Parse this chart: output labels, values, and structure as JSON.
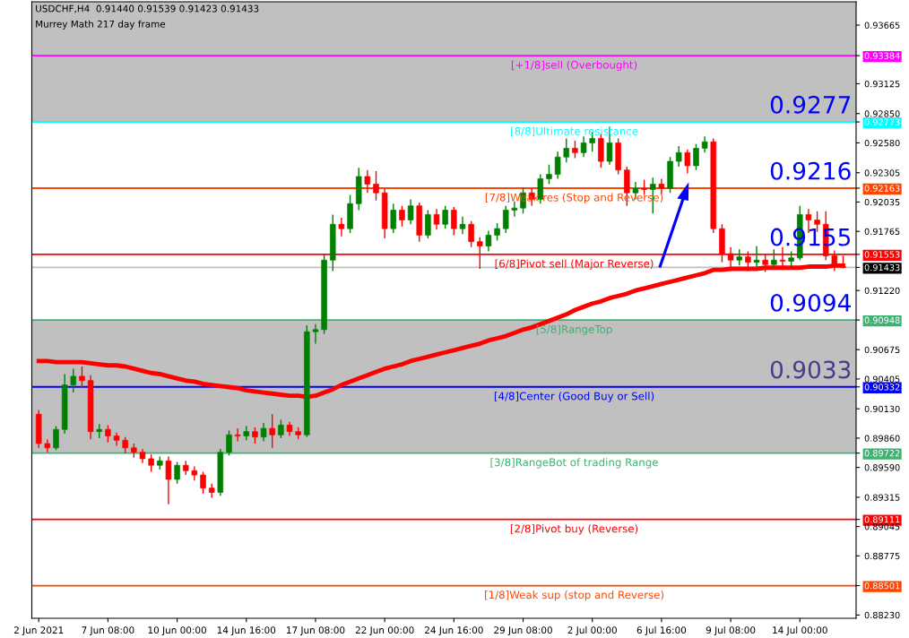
{
  "chart_data": {
    "type": "candlestick",
    "title": "USDCHF,H4  0.91440 0.91539 0.91423 0.91433",
    "subtitle": "Murrey Math 217 day frame",
    "categories": [
      "2 Jun 2021",
      null,
      null,
      null,
      null,
      null,
      null,
      null,
      "7 Jun 08:00",
      null,
      null,
      null,
      null,
      null,
      null,
      null,
      "10 Jun 00:00",
      null,
      null,
      null,
      null,
      null,
      null,
      null,
      "14 Jun 16:00",
      null,
      null,
      null,
      null,
      null,
      null,
      null,
      "17 Jun 08:00",
      null,
      null,
      null,
      null,
      null,
      null,
      null,
      "22 Jun 00:00",
      null,
      null,
      null,
      null,
      null,
      null,
      null,
      "24 Jun 16:00",
      null,
      null,
      null,
      null,
      null,
      null,
      null,
      "29 Jun 08:00",
      null,
      null,
      null,
      null,
      null,
      null,
      null,
      "2 Jul 00:00",
      null,
      null,
      null,
      null,
      null,
      null,
      null,
      "6 Jul 16:00",
      null,
      null,
      null,
      null,
      null,
      null,
      null,
      "9 Jul 08:00",
      null,
      null,
      null,
      null,
      null,
      null,
      null,
      "14 Jul 00:00",
      null,
      null,
      null,
      null,
      null
    ],
    "colors": [
      "#ff0000",
      "#ff0000",
      "#008000",
      "#008000",
      "#008000",
      "#ff0000",
      "#ff0000",
      "#008000",
      "#ff0000",
      "#ff0000",
      "#ff0000",
      "#ff0000",
      "#ff0000",
      "#ff0000",
      "#008000",
      "#ff0000",
      "#008000",
      "#ff0000",
      "#ff0000",
      "#ff0000",
      "#ff0000",
      "#008000",
      "#008000",
      "#ff0000",
      "#008000",
      "#ff0000",
      "#008000",
      "#ff0000",
      "#008000",
      "#ff0000",
      "#ff0000",
      "#008000",
      "#008000",
      "#008000",
      "#008000",
      "#ff0000",
      "#008000",
      "#008000",
      "#ff0000",
      "#ff0000",
      "#ff0000",
      "#008000",
      "#ff0000",
      "#008000",
      "#ff0000",
      "#008000",
      "#ff0000",
      "#008000",
      "#ff0000",
      "#008000",
      "#ff0000",
      "#ff0000",
      "#008000",
      "#008000",
      "#008000",
      "#008000",
      "#008000",
      "#ff0000",
      "#008000",
      "#008000",
      "#008000",
      "#008000",
      "#ff0000",
      "#008000",
      "#008000",
      "#ff0000",
      "#008000",
      "#ff0000",
      "#ff0000",
      "#008000",
      "#ff0000",
      "#008000",
      "#ff0000",
      "#008000",
      "#008000",
      "#ff0000",
      "#008000",
      "#008000",
      "#ff0000",
      "#ff0000",
      "#ff0000",
      "#008000",
      "#ff0000",
      "#008000",
      "#ff0000",
      "#008000",
      "#ff0000",
      "#008000",
      "#008000",
      "#ff0000",
      "#ff0000",
      "#ff0000",
      "#ff0000",
      "#ff0000"
    ],
    "ohlc": [
      [
        0.9008,
        0.9012,
        0.8977,
        0.8981
      ],
      [
        0.8981,
        0.8985,
        0.8973,
        0.8977
      ],
      [
        0.8977,
        0.8997,
        0.8975,
        0.8994
      ],
      [
        0.8994,
        0.9045,
        0.899,
        0.9035
      ],
      [
        0.9035,
        0.905,
        0.9028,
        0.9043
      ],
      [
        0.9043,
        0.9052,
        0.9032,
        0.9039
      ],
      [
        0.9039,
        0.9044,
        0.8985,
        0.8992
      ],
      [
        0.8992,
        0.8999,
        0.8986,
        0.8994
      ],
      [
        0.8994,
        0.8998,
        0.8982,
        0.8988
      ],
      [
        0.8988,
        0.8991,
        0.8979,
        0.8984
      ],
      [
        0.8984,
        0.8987,
        0.8972,
        0.8977
      ],
      [
        0.8977,
        0.8981,
        0.8968,
        0.8973
      ],
      [
        0.8973,
        0.8976,
        0.8963,
        0.8967
      ],
      [
        0.8967,
        0.8971,
        0.8955,
        0.8961
      ],
      [
        0.8961,
        0.8969,
        0.8957,
        0.8965
      ],
      [
        0.8965,
        0.8969,
        0.8925,
        0.8948
      ],
      [
        0.8948,
        0.8964,
        0.8944,
        0.8961
      ],
      [
        0.8961,
        0.8965,
        0.8952,
        0.8956
      ],
      [
        0.8956,
        0.896,
        0.8947,
        0.8952
      ],
      [
        0.8952,
        0.8955,
        0.8935,
        0.894
      ],
      [
        0.894,
        0.8944,
        0.8931,
        0.8936
      ],
      [
        0.8936,
        0.8976,
        0.8933,
        0.8973
      ],
      [
        0.8973,
        0.8993,
        0.897,
        0.8989
      ],
      [
        0.8989,
        0.8995,
        0.8983,
        0.8988
      ],
      [
        0.8988,
        0.8997,
        0.8984,
        0.8992
      ],
      [
        0.8992,
        0.8996,
        0.8981,
        0.8987
      ],
      [
        0.8987,
        0.9,
        0.8983,
        0.8995
      ],
      [
        0.8995,
        0.9008,
        0.8977,
        0.8989
      ],
      [
        0.8989,
        0.9003,
        0.8986,
        0.8998
      ],
      [
        0.8998,
        0.9001,
        0.8988,
        0.8992
      ],
      [
        0.8992,
        0.8996,
        0.8985,
        0.8989
      ],
      [
        0.8989,
        0.909,
        0.8987,
        0.9084
      ],
      [
        0.9084,
        0.9091,
        0.9073,
        0.9086
      ],
      [
        0.9086,
        0.9156,
        0.9082,
        0.915
      ],
      [
        0.915,
        0.9192,
        0.914,
        0.9183
      ],
      [
        0.9183,
        0.9189,
        0.9172,
        0.9179
      ],
      [
        0.9179,
        0.921,
        0.9175,
        0.9202
      ],
      [
        0.9202,
        0.9235,
        0.9196,
        0.9227
      ],
      [
        0.9227,
        0.9233,
        0.9212,
        0.922
      ],
      [
        0.922,
        0.9232,
        0.9205,
        0.9212
      ],
      [
        0.9212,
        0.9216,
        0.917,
        0.9179
      ],
      [
        0.9179,
        0.9202,
        0.9175,
        0.9196
      ],
      [
        0.9196,
        0.92,
        0.9181,
        0.9187
      ],
      [
        0.9187,
        0.9206,
        0.9183,
        0.92
      ],
      [
        0.92,
        0.9203,
        0.9167,
        0.9173
      ],
      [
        0.9173,
        0.9196,
        0.917,
        0.9192
      ],
      [
        0.9192,
        0.9197,
        0.9178,
        0.9183
      ],
      [
        0.9183,
        0.92,
        0.9179,
        0.9196
      ],
      [
        0.9196,
        0.9199,
        0.9173,
        0.9179
      ],
      [
        0.9179,
        0.919,
        0.9174,
        0.9183
      ],
      [
        0.9183,
        0.9186,
        0.9162,
        0.9167
      ],
      [
        0.9167,
        0.9171,
        0.9142,
        0.9163
      ],
      [
        0.9163,
        0.9177,
        0.9158,
        0.9173
      ],
      [
        0.9173,
        0.9184,
        0.9168,
        0.9179
      ],
      [
        0.9179,
        0.92,
        0.9175,
        0.9196
      ],
      [
        0.9196,
        0.9204,
        0.919,
        0.9198
      ],
      [
        0.9198,
        0.9217,
        0.9193,
        0.9212
      ],
      [
        0.9212,
        0.9216,
        0.92,
        0.9206
      ],
      [
        0.9206,
        0.9229,
        0.9202,
        0.9225
      ],
      [
        0.9225,
        0.9238,
        0.922,
        0.9229
      ],
      [
        0.9229,
        0.925,
        0.9225,
        0.9245
      ],
      [
        0.9245,
        0.9262,
        0.924,
        0.9253
      ],
      [
        0.9253,
        0.926,
        0.9244,
        0.9249
      ],
      [
        0.9249,
        0.9264,
        0.9245,
        0.9258
      ],
      [
        0.9258,
        0.9268,
        0.925,
        0.9262
      ],
      [
        0.9262,
        0.9266,
        0.9235,
        0.9241
      ],
      [
        0.9241,
        0.9273,
        0.9238,
        0.9258
      ],
      [
        0.9258,
        0.9262,
        0.9229,
        0.9233
      ],
      [
        0.9233,
        0.9236,
        0.92,
        0.9212
      ],
      [
        0.9212,
        0.9222,
        0.9206,
        0.9216
      ],
      [
        0.9216,
        0.9224,
        0.921,
        0.9215
      ],
      [
        0.9215,
        0.9226,
        0.9193,
        0.922
      ],
      [
        0.922,
        0.9225,
        0.9211,
        0.9216
      ],
      [
        0.9216,
        0.9245,
        0.9212,
        0.9241
      ],
      [
        0.9241,
        0.9255,
        0.9236,
        0.9249
      ],
      [
        0.9249,
        0.9252,
        0.923,
        0.9237
      ],
      [
        0.9237,
        0.9257,
        0.9233,
        0.9253
      ],
      [
        0.9253,
        0.9264,
        0.9249,
        0.9259
      ],
      [
        0.9259,
        0.9262,
        0.9175,
        0.9179
      ],
      [
        0.9179,
        0.9183,
        0.9148,
        0.9156
      ],
      [
        0.9156,
        0.9162,
        0.914,
        0.915
      ],
      [
        0.915,
        0.916,
        0.9145,
        0.9153
      ],
      [
        0.9153,
        0.9158,
        0.914,
        0.9148
      ],
      [
        0.9148,
        0.9163,
        0.9143,
        0.915
      ],
      [
        0.915,
        0.9155,
        0.9139,
        0.9146
      ],
      [
        0.9146,
        0.916,
        0.9142,
        0.915
      ],
      [
        0.915,
        0.9162,
        0.9141,
        0.9149
      ],
      [
        0.9149,
        0.9158,
        0.9144,
        0.9152
      ],
      [
        0.9152,
        0.92,
        0.915,
        0.9192
      ],
      [
        0.9192,
        0.9197,
        0.9175,
        0.9187
      ],
      [
        0.9187,
        0.9195,
        0.9176,
        0.9183
      ],
      [
        0.9183,
        0.9195,
        0.915,
        0.9154
      ],
      [
        0.9154,
        0.9159,
        0.914,
        0.9144
      ],
      [
        0.9144,
        0.91539,
        0.91423,
        0.91433
      ]
    ],
    "series": [
      {
        "type": "line",
        "color": "#ff0000",
        "values": [
          0.9057,
          0.9057,
          0.9056,
          0.9056,
          0.9056,
          0.9056,
          0.9055,
          0.9054,
          0.9053,
          0.9053,
          0.9052,
          0.905,
          0.9048,
          0.9046,
          0.9045,
          0.9043,
          0.9041,
          0.9039,
          0.9038,
          0.9036,
          0.9035,
          0.9034,
          0.9033,
          0.9032,
          0.903,
          0.9029,
          0.9028,
          0.9027,
          0.9026,
          0.9025,
          0.9025,
          0.9024,
          0.9025,
          0.9028,
          0.9031,
          0.9035,
          0.9038,
          0.9041,
          0.9044,
          0.9047,
          0.905,
          0.9052,
          0.9054,
          0.9057,
          0.9059,
          0.9061,
          0.9063,
          0.9065,
          0.9067,
          0.9069,
          0.9071,
          0.9073,
          0.9076,
          0.9078,
          0.908,
          0.9083,
          0.9086,
          0.9088,
          0.9091,
          0.9094,
          0.9097,
          0.91,
          0.9104,
          0.9107,
          0.911,
          0.9112,
          0.9115,
          0.9117,
          0.9119,
          0.9122,
          0.9124,
          0.9126,
          0.9128,
          0.913,
          0.9132,
          0.9134,
          0.9136,
          0.9138,
          0.9141,
          0.9141,
          0.9142,
          0.9142,
          0.9142,
          0.9142,
          0.9143,
          0.9143,
          0.9143,
          0.9143,
          0.9143,
          0.9144,
          0.9144,
          0.9144,
          0.9145,
          0.9145
        ]
      }
    ],
    "ylim": [
      0.882,
      0.9388
    ],
    "yticks": [
      {
        "value": 0.93384,
        "label": "0.93384"
      },
      {
        "value": 0.92773,
        "label": "0.92773"
      },
      {
        "value": 0.92163,
        "label": "0.92163"
      },
      {
        "value": 0.91553,
        "label": "0.91553"
      },
      {
        "value": 0.91433,
        "label": "0.91433"
      },
      {
        "value": 0.90948,
        "label": "0.90948"
      },
      {
        "value": 0.90332,
        "label": "0.90332"
      },
      {
        "value": 0.89722,
        "label": "0.89722"
      },
      {
        "value": 0.89111,
        "label": "0.89111"
      },
      {
        "value": 0.88501,
        "label": "0.88501"
      },
      {
        "value": 0.93665,
        "label": "0.93665"
      },
      {
        "value": 0.93125,
        "label": "0.93125"
      },
      {
        "value": 0.9285,
        "label": "0.92850"
      },
      {
        "value": 0.9258,
        "label": "0.92580"
      },
      {
        "value": 0.92305,
        "label": "0.92305"
      },
      {
        "value": 0.92035,
        "label": "0.92035"
      },
      {
        "value": 0.91765,
        "label": "0.91765"
      },
      {
        "value": 0.9122,
        "label": "0.91220"
      },
      {
        "value": 0.90675,
        "label": "0.90675"
      },
      {
        "value": 0.90405,
        "label": "0.90405"
      },
      {
        "value": 0.9013,
        "label": "0.90130"
      },
      {
        "value": 0.8986,
        "label": "0.89860"
      },
      {
        "value": 0.8959,
        "label": "0.89590"
      },
      {
        "value": 0.89315,
        "label": "0.89315"
      },
      {
        "value": 0.89045,
        "label": "0.89045"
      },
      {
        "value": 0.88775,
        "label": "0.88775"
      },
      {
        "value": 0.8823,
        "label": "0.88230"
      }
    ],
    "bands": [
      {
        "axis": "y",
        "from": 0.92773,
        "to": 0.9388,
        "color": "#c0c0c0"
      },
      {
        "axis": "y",
        "from": 0.89722,
        "to": 0.90948,
        "color": "#c0c0c0"
      }
    ],
    "ref_lines": [
      {
        "axis": "y",
        "value": 0.93384,
        "label": "[+1/8]sell (Overbought)",
        "color": "#ff00ff"
      },
      {
        "axis": "y",
        "value": 0.92773,
        "label": "[8/8]Ultimate resistance",
        "color": "#00ffff"
      },
      {
        "axis": "y",
        "value": 0.92163,
        "label": "[7/8]Weak res (Stop and Reverse)",
        "color": "#ff4500"
      },
      {
        "axis": "y",
        "value": 0.91553,
        "label": "[6/8]Pivot sell (Major Reverse)",
        "color": "#ff0000"
      },
      {
        "axis": "y",
        "value": 0.91433,
        "label": null,
        "color": "#c0c0c0"
      },
      {
        "axis": "y",
        "value": 0.90948,
        "label": "[5/8]RangeTop",
        "color": "#3cb371"
      },
      {
        "axis": "y",
        "value": 0.90332,
        "label": "[4/8]Center (Good Buy or Sell)",
        "color": "#0000ff"
      },
      {
        "axis": "y",
        "value": 0.89722,
        "label": "[3/8]RangeBot of trading Range",
        "color": "#3cb371"
      },
      {
        "axis": "y",
        "value": 0.89111,
        "label": "[2/8]Pivot buy (Reverse)",
        "color": "#ff0000"
      },
      {
        "axis": "y",
        "value": 0.88501,
        "label": "[1/8]Weak sup (stop and Reverse)",
        "color": "#ff4500"
      }
    ],
    "annotations": [
      {
        "text": "0.9277",
        "y": 0.92773
      },
      {
        "text": "0.9216",
        "y": 0.92163
      },
      {
        "text": "0.9155",
        "y": 0.91553
      },
      {
        "text": "0.9094",
        "y": 0.90948
      },
      {
        "text": "0.9033",
        "y": 0.90332
      }
    ],
    "grid": false,
    "legend": false
  }
}
